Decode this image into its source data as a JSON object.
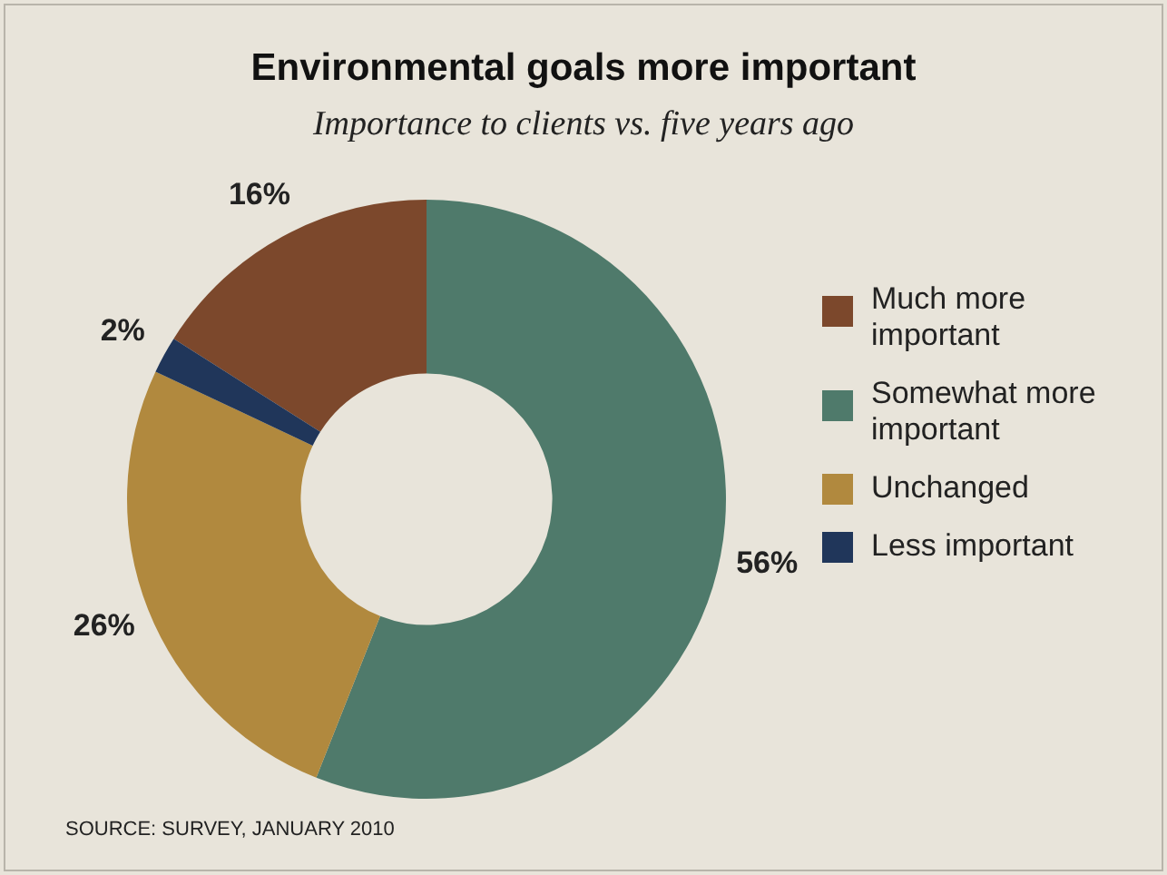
{
  "chart_data": {
    "type": "donut",
    "title": "Environmental goals more important",
    "subtitle": "Importance to clients vs. five years ago",
    "categories": [
      "Much more important",
      "Somewhat more important",
      "Unchanged",
      "Less important"
    ],
    "values": [
      16,
      56,
      26,
      2
    ],
    "value_labels": [
      "16%",
      "56%",
      "26%",
      "2%"
    ],
    "colors": [
      "#7c482c",
      "#4f7a6b",
      "#b1893e",
      "#20365a"
    ],
    "legend": "right",
    "annotations": [
      "SOURCE: SURVEY, JANUARY 2010"
    ]
  }
}
